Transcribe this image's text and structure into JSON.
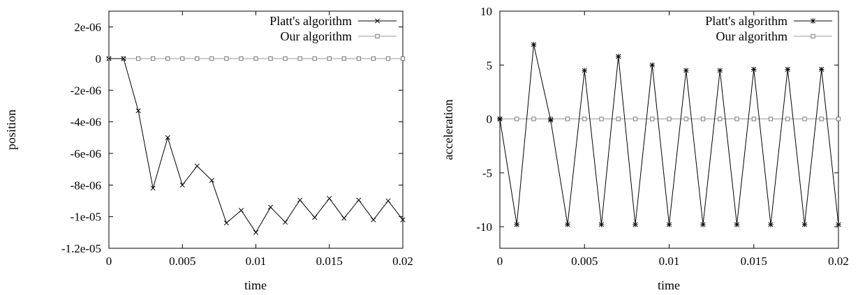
{
  "chart_data": [
    {
      "type": "line",
      "title": "",
      "xlabel": "time",
      "ylabel": "position",
      "xlim": [
        0,
        0.02
      ],
      "ylim": [
        -1.2e-05,
        3e-06
      ],
      "xticks": [
        0,
        0.005,
        0.01,
        0.015,
        0.02
      ],
      "xtick_labels": [
        "0",
        "0.005",
        "0.01",
        "0.015",
        "0.02"
      ],
      "yticks": [
        2e-06,
        0,
        -2e-06,
        -4e-06,
        -6e-06,
        -8e-06,
        -1e-05,
        -1.2e-05
      ],
      "ytick_labels": [
        "2e-06",
        "0",
        "-2e-06",
        "-4e-06",
        "-6e-06",
        "-8e-06",
        "-1e-05",
        "-1.2e-05"
      ],
      "grid": false,
      "legend_position": "top-right",
      "x": [
        0,
        0.001,
        0.002,
        0.003,
        0.004,
        0.005,
        0.006,
        0.007,
        0.008,
        0.009,
        0.01,
        0.011,
        0.012,
        0.013,
        0.014,
        0.015,
        0.016,
        0.017,
        0.018,
        0.019,
        0.02
      ],
      "series": [
        {
          "name": "Platt's algorithm",
          "marker": "x",
          "color": "#000000",
          "values": [
            0,
            0,
            -3.3e-06,
            -8.2e-06,
            -5e-06,
            -8e-06,
            -6.8e-06,
            -7.7e-06,
            -1.04e-05,
            -9.6e-06,
            -1.1e-05,
            -9.4e-06,
            -1.035e-05,
            -8.95e-06,
            -1.005e-05,
            -8.85e-06,
            -1.01e-05,
            -8.95e-06,
            -1.02e-05,
            -9e-06,
            -1.02e-05
          ]
        },
        {
          "name": "Our algorithm",
          "marker": "square",
          "color": "#888888",
          "values": [
            0,
            0,
            0,
            0,
            0,
            0,
            0,
            0,
            0,
            0,
            0,
            0,
            0,
            0,
            0,
            0,
            0,
            0,
            0,
            0,
            0
          ]
        }
      ]
    },
    {
      "type": "line",
      "title": "",
      "xlabel": "time",
      "ylabel": "acceleration",
      "xlim": [
        0,
        0.02
      ],
      "ylim": [
        -12,
        10
      ],
      "xticks": [
        0,
        0.005,
        0.01,
        0.015,
        0.02
      ],
      "xtick_labels": [
        "0",
        "0.005",
        "0.01",
        "0.015",
        "0.02"
      ],
      "yticks": [
        10,
        5,
        0,
        -5,
        -10
      ],
      "ytick_labels": [
        "10",
        "5",
        "0",
        "-5",
        "-10"
      ],
      "grid": false,
      "legend_position": "top-right",
      "x": [
        0,
        0.001,
        0.002,
        0.003,
        0.004,
        0.005,
        0.006,
        0.007,
        0.008,
        0.009,
        0.01,
        0.011,
        0.012,
        0.013,
        0.014,
        0.015,
        0.016,
        0.017,
        0.018,
        0.019,
        0.02
      ],
      "series": [
        {
          "name": "Platt's algorithm",
          "marker": "star",
          "color": "#000000",
          "values": [
            0,
            -9.8,
            6.9,
            -0.1,
            -9.8,
            4.5,
            -9.8,
            5.8,
            -9.8,
            5,
            -9.8,
            4.5,
            -9.8,
            4.5,
            -9.8,
            4.6,
            -9.8,
            4.6,
            -9.8,
            4.6,
            -9.8
          ]
        },
        {
          "name": "Our algorithm",
          "marker": "square",
          "color": "#888888",
          "values": [
            0,
            0,
            0,
            0,
            0,
            0,
            0,
            0,
            0,
            0,
            0,
            0,
            0,
            0,
            0,
            0,
            0,
            0,
            0,
            0,
            0
          ]
        }
      ]
    }
  ]
}
